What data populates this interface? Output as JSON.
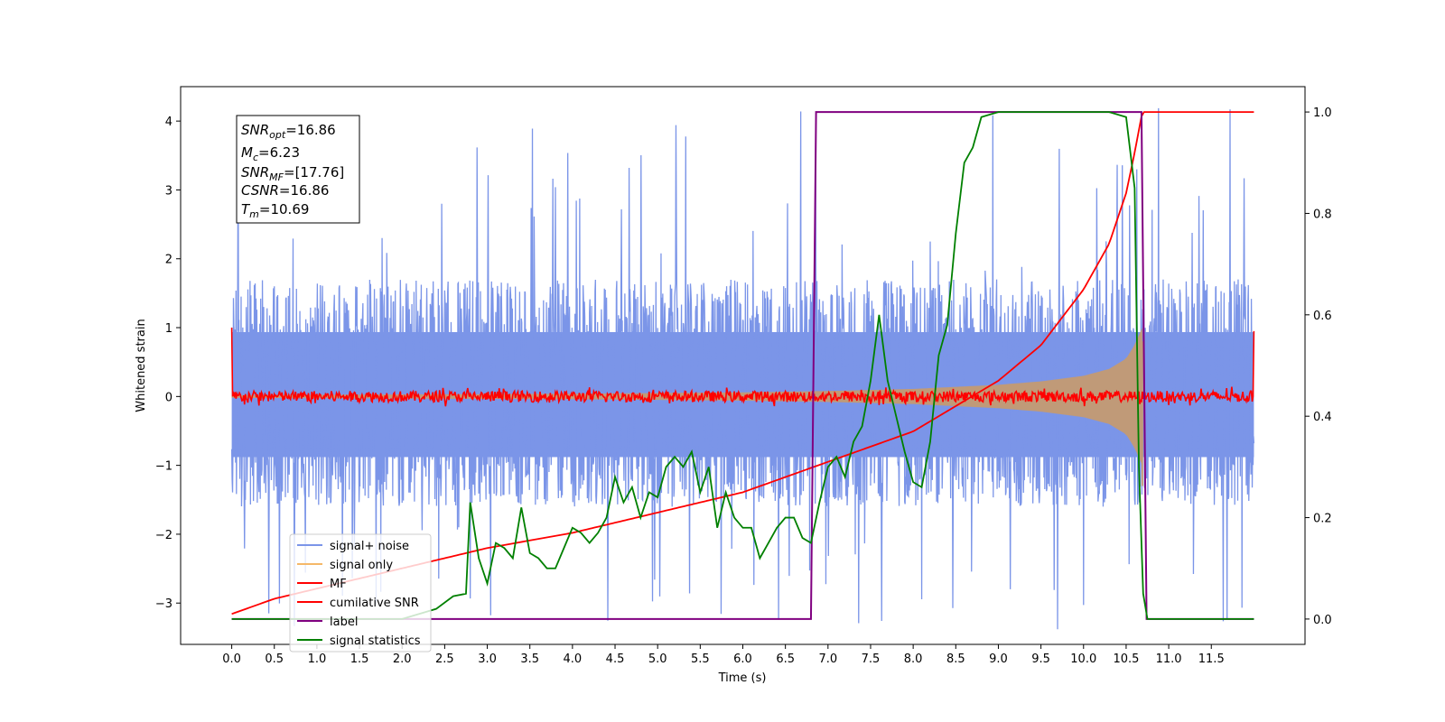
{
  "chart_data": {
    "type": "line",
    "title": "",
    "xlabel": "Time (s)",
    "ylabel_left": "Whitened strain",
    "ylabel_right": "",
    "xlim": [
      -0.6,
      12.6
    ],
    "ylim_left": [
      -3.6,
      4.5
    ],
    "ylim_right": [
      -0.05,
      1.05
    ],
    "x_ticks": [
      0.0,
      0.5,
      1.0,
      1.5,
      2.0,
      2.5,
      3.0,
      3.5,
      4.0,
      4.5,
      5.0,
      5.5,
      6.0,
      6.5,
      7.0,
      7.5,
      8.0,
      8.5,
      9.0,
      9.5,
      10.0,
      10.5,
      11.0,
      11.5
    ],
    "x_tick_labels": [
      "0.0",
      "0.5",
      "1.0",
      "1.5",
      "2.0",
      "2.5",
      "3.0",
      "3.5",
      "4.0",
      "4.5",
      "5.0",
      "5.5",
      "6.0",
      "6.5",
      "7.0",
      "7.5",
      "8.0",
      "8.5",
      "9.0",
      "9.5",
      "10.0",
      "10.5",
      "11.0",
      "11.5"
    ],
    "y_left_ticks": [
      -3,
      -2,
      -1,
      0,
      1,
      2,
      3,
      4
    ],
    "y_left_tick_labels": [
      "−3",
      "−2",
      "−1",
      "0",
      "1",
      "2",
      "3",
      "4"
    ],
    "y_right_ticks": [
      0.0,
      0.2,
      0.4,
      0.6,
      0.8,
      1.0
    ],
    "y_right_tick_labels": [
      "0.0",
      "0.2",
      "0.4",
      "0.6",
      "0.8",
      "1.0"
    ],
    "grid": false,
    "legend_position": "lower-left",
    "colors": {
      "signal_noise": "#7b95e8",
      "signal_only": "#f5b869",
      "signal_fill": "#c09a78",
      "mf": "#ff0000",
      "cumulative_snr": "#ff0000",
      "label": "#800080",
      "signal_statistics": "#008000"
    },
    "info_box": {
      "lines": [
        {
          "base": "SNR",
          "sub": "opt",
          "value": "=16.86"
        },
        {
          "base": "M",
          "sub": "c",
          "value": "=6.23"
        },
        {
          "base": "SNR",
          "sub": "MF",
          "value": "=[17.76]"
        },
        {
          "base": "CSNR",
          "sub": "",
          "value": "=16.86"
        },
        {
          "base": "T",
          "sub": "m",
          "value": "=10.69"
        }
      ]
    },
    "series": [
      {
        "name": "signal+ noise",
        "axis": "left",
        "kind": "noise_band",
        "x_range": [
          0.0,
          12.0
        ],
        "typical_range": [
          -1.6,
          1.7
        ],
        "peak_range": [
          -3.2,
          4.2
        ]
      },
      {
        "name": "signal only",
        "axis": "left",
        "kind": "chirp_envelope",
        "x": [
          0.0,
          2.0,
          4.0,
          6.0,
          7.0,
          8.0,
          9.0,
          9.5,
          10.0,
          10.3,
          10.5,
          10.6,
          10.69
        ],
        "amplitude": [
          0.02,
          0.03,
          0.04,
          0.06,
          0.08,
          0.11,
          0.17,
          0.22,
          0.3,
          0.4,
          0.55,
          0.75,
          1.0
        ]
      },
      {
        "name": "MF",
        "axis": "left",
        "kind": "noisy_baseline",
        "x_range": [
          0.0,
          12.0
        ],
        "level": 0.0,
        "noise": 0.08,
        "start_value": 1.0,
        "end_value": 0.95
      },
      {
        "name": "cumilative SNR",
        "axis": "right",
        "x": [
          0.0,
          0.5,
          1.0,
          2.0,
          3.0,
          4.0,
          5.0,
          6.0,
          7.0,
          7.5,
          8.0,
          8.5,
          9.0,
          9.5,
          10.0,
          10.3,
          10.5,
          10.6,
          10.69,
          12.0
        ],
        "y": [
          0.01,
          0.04,
          0.06,
          0.1,
          0.14,
          0.17,
          0.21,
          0.25,
          0.31,
          0.34,
          0.37,
          0.42,
          0.47,
          0.54,
          0.65,
          0.74,
          0.84,
          0.92,
          1.0,
          1.0
        ]
      },
      {
        "name": "label",
        "axis": "right",
        "x": [
          0.0,
          6.8,
          6.86,
          10.68,
          10.74,
          12.0
        ],
        "y": [
          0.0,
          0.0,
          1.0,
          1.0,
          0.0,
          0.0
        ]
      },
      {
        "name": "signal statistics",
        "axis": "right",
        "x": [
          0.0,
          2.0,
          2.2,
          2.4,
          2.6,
          2.75,
          2.8,
          2.9,
          3.0,
          3.1,
          3.2,
          3.3,
          3.4,
          3.5,
          3.6,
          3.7,
          3.8,
          3.9,
          4.0,
          4.1,
          4.2,
          4.3,
          4.4,
          4.5,
          4.6,
          4.7,
          4.8,
          4.9,
          5.0,
          5.1,
          5.2,
          5.3,
          5.4,
          5.5,
          5.6,
          5.7,
          5.8,
          5.9,
          6.0,
          6.1,
          6.2,
          6.3,
          6.4,
          6.5,
          6.6,
          6.7,
          6.8,
          6.9,
          7.0,
          7.1,
          7.2,
          7.3,
          7.4,
          7.5,
          7.6,
          7.7,
          7.8,
          7.9,
          8.0,
          8.1,
          8.2,
          8.3,
          8.4,
          8.5,
          8.6,
          8.7,
          8.8,
          9.0,
          9.5,
          10.0,
          10.3,
          10.5,
          10.6,
          10.65,
          10.7,
          10.75,
          12.0
        ],
        "y": [
          0.0,
          0.0,
          0.01,
          0.02,
          0.045,
          0.05,
          0.23,
          0.12,
          0.07,
          0.15,
          0.14,
          0.12,
          0.22,
          0.13,
          0.12,
          0.1,
          0.1,
          0.14,
          0.18,
          0.17,
          0.15,
          0.17,
          0.2,
          0.28,
          0.23,
          0.26,
          0.2,
          0.25,
          0.24,
          0.3,
          0.32,
          0.3,
          0.33,
          0.25,
          0.3,
          0.18,
          0.25,
          0.2,
          0.18,
          0.18,
          0.12,
          0.15,
          0.18,
          0.2,
          0.2,
          0.16,
          0.15,
          0.23,
          0.3,
          0.32,
          0.28,
          0.35,
          0.38,
          0.47,
          0.6,
          0.47,
          0.4,
          0.33,
          0.27,
          0.26,
          0.35,
          0.52,
          0.58,
          0.76,
          0.9,
          0.93,
          0.99,
          1.0,
          1.0,
          1.0,
          1.0,
          0.99,
          0.85,
          0.3,
          0.05,
          0.0,
          0.0
        ]
      }
    ]
  }
}
